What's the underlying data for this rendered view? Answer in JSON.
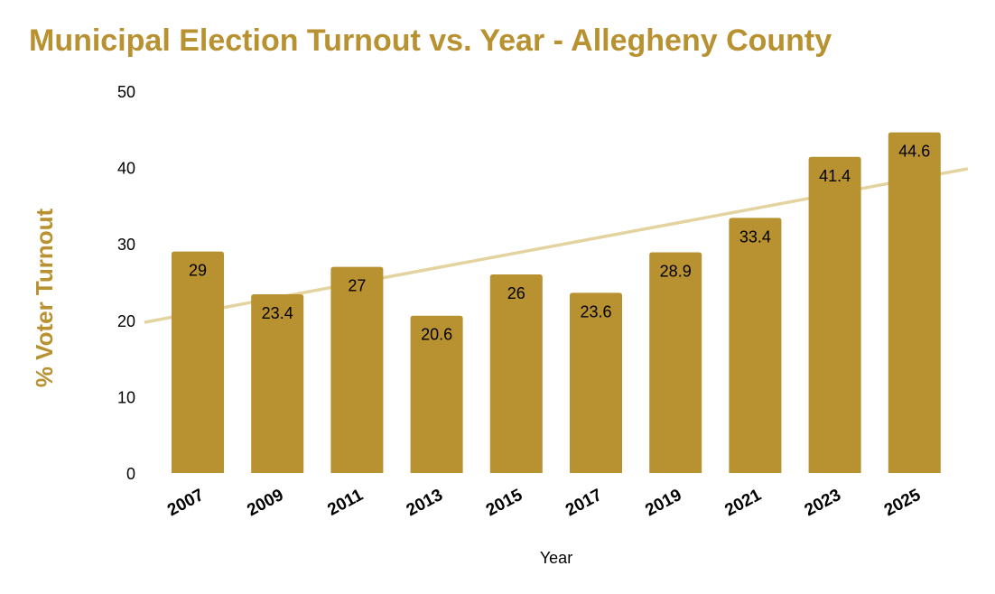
{
  "chart_data": {
    "type": "bar",
    "title": "Municipal Election Turnout vs. Year - Allegheny County",
    "xlabel": "Year",
    "ylabel": "% Voter Turnout",
    "categories": [
      "2007",
      "2009",
      "2011",
      "2013",
      "2015",
      "2017",
      "2019",
      "2021",
      "2023",
      "2025"
    ],
    "values": [
      29,
      23.4,
      27,
      20.6,
      26,
      23.6,
      28.9,
      33.4,
      41.4,
      44.6
    ],
    "data_labels": [
      "29",
      "23.4",
      "27",
      "20.6",
      "26",
      "23.6",
      "28.9",
      "33.4",
      "41.4",
      "44.6"
    ],
    "ylim": [
      0,
      50
    ],
    "yticks": [
      "0",
      "10",
      "20",
      "30",
      "40",
      "50"
    ],
    "grid": false,
    "trendline": "linear",
    "colors": {
      "bar": "#b89130",
      "trendline": "#e3d39f",
      "title": "#b89130"
    }
  }
}
